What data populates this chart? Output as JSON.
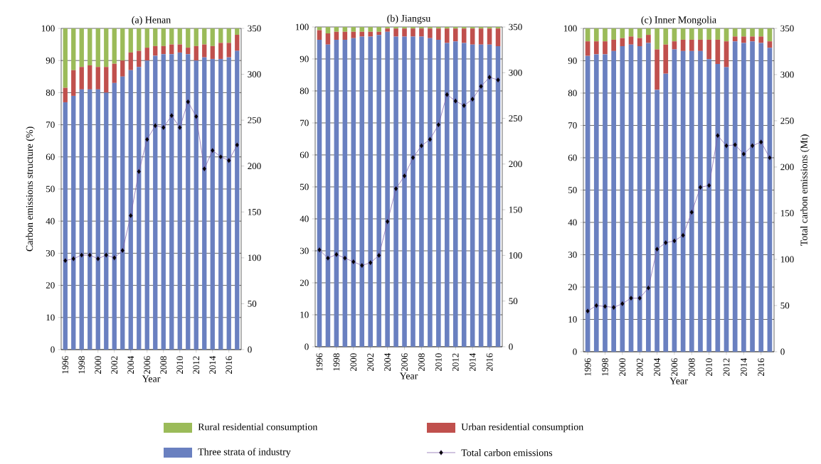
{
  "chart_data": [
    {
      "type": "bar",
      "stacked": true,
      "title": "(a) Henan",
      "xlabel": "Year",
      "ylabel": "Carbon emissions structure (%)",
      "categories": [
        "1996",
        null,
        "1998",
        null,
        "2000",
        null,
        "2002",
        null,
        "2004",
        null,
        "2006",
        null,
        "2008",
        null,
        "2010",
        null,
        "2012",
        null,
        "2014",
        null,
        "2016",
        null
      ],
      "ylim": [
        0,
        100
      ],
      "yticks": [
        0,
        10,
        20,
        30,
        40,
        50,
        60,
        70,
        80,
        90,
        100
      ],
      "y2lim": [
        0,
        350
      ],
      "y2ticks": [
        0,
        50,
        100,
        150,
        200,
        250,
        300,
        350
      ],
      "grid": "y",
      "legend": "bottom",
      "series": [
        {
          "name": "Three strata of industry",
          "color": "#6a80c0",
          "values": [
            77,
            79,
            81,
            81,
            81,
            80,
            83,
            85,
            87,
            88,
            90,
            91.5,
            92,
            92,
            92.5,
            92,
            90,
            91,
            90.5,
            90.5,
            91,
            93
          ]
        },
        {
          "name": "Urban residential consumption",
          "color": "#c0504d",
          "values": [
            4.5,
            8,
            7,
            7.5,
            7,
            8,
            6,
            5,
            5.5,
            5,
            4,
            3,
            2.5,
            3,
            2.5,
            2,
            4.5,
            4,
            4,
            5,
            4.5,
            5
          ]
        },
        {
          "name": "Rural residential consumption",
          "color": "#9bbb59",
          "values": [
            18.5,
            13,
            12,
            11.5,
            12,
            12,
            11,
            10,
            7.5,
            7,
            6,
            5.5,
            5.5,
            5,
            5,
            6,
            5.5,
            5,
            5.5,
            4.5,
            4.5,
            2
          ]
        },
        {
          "name": "Total carbon emissions",
          "type": "line",
          "axis": "y2",
          "color": "#7b5aa6",
          "marker": "diamond",
          "line_style": "solid",
          "values": [
            97,
            99,
            103,
            103,
            99,
            103,
            100,
            108,
            146,
            194,
            229,
            244,
            242,
            255,
            242,
            270,
            254,
            197,
            217,
            210,
            206,
            223
          ]
        }
      ]
    },
    {
      "type": "bar",
      "stacked": true,
      "title": "(b) Jiangsu",
      "xlabel": "Year",
      "categories": [
        "1996",
        null,
        "1998",
        null,
        "2000",
        null,
        "2002",
        null,
        "2004",
        null,
        "2006",
        null,
        "2008",
        null,
        "2010",
        null,
        "2012",
        null,
        "2014",
        null,
        "2016",
        null
      ],
      "ylim": [
        0,
        100
      ],
      "yticks": [
        0,
        10,
        20,
        30,
        40,
        50,
        60,
        70,
        80,
        90,
        100
      ],
      "y2lim": [
        0,
        350
      ],
      "y2ticks": [
        0,
        50,
        100,
        150,
        200,
        250,
        300,
        350
      ],
      "grid": "y",
      "series": [
        {
          "color": "#6a80c0",
          "values": [
            96,
            94.5,
            96,
            96,
            96.5,
            97,
            97,
            97.5,
            98.5,
            97,
            97,
            97,
            97,
            96.5,
            96,
            95,
            95.5,
            95,
            94.5,
            94.5,
            94.5,
            94
          ]
        },
        {
          "color": "#c0504d",
          "values": [
            3,
            3.5,
            2.5,
            2.5,
            2,
            1.5,
            1.5,
            1,
            1,
            2.5,
            2.5,
            2.5,
            2.5,
            3,
            3.5,
            4.5,
            4,
            4.5,
            5,
            5,
            5,
            5.5
          ]
        },
        {
          "color": "#9bbb59",
          "values": [
            1,
            2,
            1.5,
            1.5,
            1.5,
            1.5,
            1.5,
            1.5,
            0.5,
            0.5,
            0.5,
            0.5,
            0.5,
            0.5,
            0.5,
            0.5,
            0.5,
            0.5,
            0.5,
            0.5,
            0.5,
            0.5
          ]
        },
        {
          "type": "line",
          "axis": "y2",
          "color": "#7b5aa6",
          "marker": "diamond",
          "line_style": "solid",
          "values": [
            106,
            97,
            101,
            97,
            93,
            89,
            92,
            100,
            137,
            173,
            187,
            207,
            220,
            227,
            243,
            276,
            269,
            264,
            271,
            285,
            295,
            292
          ]
        }
      ]
    },
    {
      "type": "bar",
      "stacked": true,
      "title": "(c) Inner Mongolia",
      "xlabel": "Year",
      "y2label": "Total carbon emissions (Mt)",
      "categories": [
        "1996",
        null,
        "1998",
        null,
        "2000",
        null,
        "2002",
        null,
        "2004",
        null,
        "2006",
        null,
        "2008",
        null,
        "2010",
        null,
        "2012",
        null,
        "2014",
        null,
        "2016",
        null
      ],
      "ylim": [
        0,
        100
      ],
      "yticks": [
        0,
        10,
        20,
        30,
        40,
        50,
        60,
        70,
        80,
        90,
        100
      ],
      "y2lim": [
        0,
        350
      ],
      "y2ticks": [
        0,
        50,
        100,
        150,
        200,
        250,
        300,
        350
      ],
      "grid": "y",
      "series": [
        {
          "color": "#6a80c0",
          "values": [
            91.5,
            92,
            92,
            93,
            94.5,
            95,
            94.5,
            95.5,
            81,
            86,
            93.5,
            93,
            93,
            93,
            90.5,
            89,
            88,
            96,
            95.5,
            96,
            95.5,
            94
          ]
        },
        {
          "color": "#c0504d",
          "values": [
            4.5,
            4,
            4,
            3.5,
            2.5,
            2.5,
            2.5,
            2.5,
            12.5,
            9,
            2.5,
            3.5,
            3.5,
            3.5,
            6,
            7.5,
            8,
            1.5,
            2,
            1.5,
            2,
            2
          ]
        },
        {
          "color": "#9bbb59",
          "values": [
            4,
            4,
            4,
            3.5,
            3,
            2.5,
            3,
            2,
            6.5,
            5,
            4,
            3.5,
            3.5,
            3.5,
            3.5,
            3.5,
            4,
            2.5,
            2.5,
            2.5,
            2.5,
            4
          ]
        },
        {
          "type": "line",
          "axis": "y2",
          "color": "#7b5aa6",
          "marker": "diamond",
          "line_style": "solid",
          "values": [
            44,
            50,
            49,
            48,
            52,
            58,
            58,
            69,
            111,
            118,
            120,
            126,
            151,
            178,
            180,
            234,
            223,
            224,
            214,
            223,
            227,
            210
          ]
        }
      ]
    }
  ]
}
